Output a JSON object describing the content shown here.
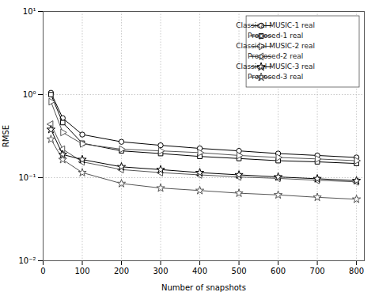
{
  "chart_data": {
    "type": "line",
    "x": [
      20,
      50,
      100,
      200,
      300,
      400,
      500,
      600,
      700,
      800
    ],
    "series": [
      {
        "name": "Classical MUSIC-1 real",
        "color": "#000000",
        "marker": "circle",
        "line_style": "solid",
        "values": [
          1.05,
          0.52,
          0.33,
          0.27,
          0.245,
          0.225,
          0.21,
          0.195,
          0.185,
          0.175
        ]
      },
      {
        "name": "Proposed-1 real",
        "color": "#000000",
        "marker": "square",
        "line_style": "solid",
        "values": [
          1.0,
          0.46,
          0.26,
          0.21,
          0.195,
          0.18,
          0.17,
          0.16,
          0.155,
          0.148
        ]
      },
      {
        "name": "Classical MUSIC-2 real",
        "color": "#555555",
        "marker": "triangle-right",
        "line_style": "solid",
        "values": [
          0.82,
          0.35,
          0.255,
          0.22,
          0.21,
          0.2,
          0.185,
          0.175,
          0.168,
          0.16
        ]
      },
      {
        "name": "Proposed-2 real",
        "color": "#555555",
        "marker": "triangle-left",
        "line_style": "solid",
        "values": [
          0.44,
          0.22,
          0.155,
          0.125,
          0.115,
          0.108,
          0.102,
          0.098,
          0.093,
          0.089
        ]
      },
      {
        "name": "Classical MUSIC-3 real",
        "color": "#000000",
        "marker": "star",
        "line_style": "solid",
        "values": [
          0.38,
          0.19,
          0.165,
          0.135,
          0.125,
          0.115,
          0.108,
          0.102,
          0.097,
          0.092
        ]
      },
      {
        "name": "Proposed-3 real",
        "color": "#555555",
        "marker": "star",
        "line_style": "solid",
        "values": [
          0.29,
          0.165,
          0.115,
          0.085,
          0.075,
          0.07,
          0.065,
          0.062,
          0.058,
          0.055
        ]
      }
    ],
    "xlabel": "Number of snapshots",
    "ylabel": "RMSE",
    "xlim": [
      0,
      820
    ],
    "xticks": [
      0,
      100,
      200,
      300,
      400,
      500,
      600,
      700,
      800
    ],
    "ylim": [
      0.01,
      10
    ],
    "yticks": [
      {
        "value": 0.01,
        "label": "10⁻²"
      },
      {
        "value": 0.1,
        "label": "10⁻¹"
      },
      {
        "value": 1,
        "label": "10⁰"
      },
      {
        "value": 10,
        "label": "10¹"
      }
    ],
    "log": "y",
    "grid": true,
    "legend": "upper right"
  }
}
